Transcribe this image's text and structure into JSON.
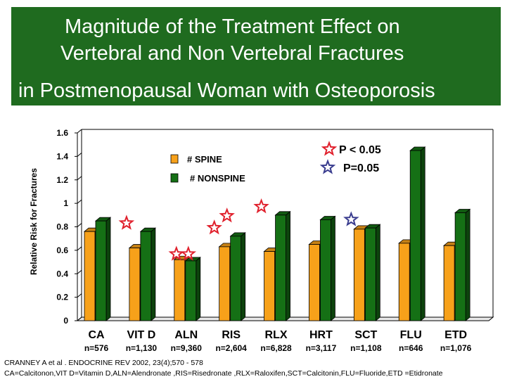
{
  "title": {
    "line1": "Magnitude of the Treatment Effect on",
    "line2": "Vertebral and Non Vertebral Fractures",
    "line3": "in Postmenopausal Woman with Osteoporosis"
  },
  "colors": {
    "title_bg": "#1f6b1f",
    "spine": "#f7a11a",
    "nonspine": "#157015",
    "star_red": "#e0202c",
    "star_blue": "#3a3d8f"
  },
  "chart_data": {
    "type": "bar",
    "ylabel": "Relative Risk  for Fractures",
    "xlabel": "",
    "ylim": [
      0,
      1.6
    ],
    "yticks": [
      "0",
      "0.2",
      "0.4",
      "0.6",
      "0.8",
      "1",
      "1.2",
      "1.4",
      "1.6"
    ],
    "categories": [
      "CA",
      "VIT D",
      "ALN",
      "RIS",
      "RLX",
      "HRT",
      "SCT",
      "FLU",
      "ETD"
    ],
    "sample_sizes": [
      "n=576",
      "n=1,130",
      "n=9,360",
      "n=2,604",
      "n=6,828",
      "n=3,117",
      "n=1,108",
      "n=646",
      "n=1,076"
    ],
    "series": [
      {
        "name": "# SPINE",
        "values": [
          0.76,
          0.62,
          0.52,
          0.63,
          0.59,
          0.65,
          0.78,
          0.66,
          0.64
        ]
      },
      {
        "name": "# NONSPINE",
        "values": [
          0.85,
          0.76,
          0.51,
          0.72,
          0.9,
          0.86,
          0.79,
          1.45,
          0.92
        ]
      }
    ],
    "legend": {
      "placement": "top-center"
    },
    "grid": false,
    "significance_legend": [
      {
        "symbol": "red-star",
        "label": "P < 0.05"
      },
      {
        "symbol": "blue-star",
        "label": "P=0.05"
      }
    ],
    "significance_markers": [
      {
        "category": "VIT D",
        "symbol": "red-star",
        "count": 1
      },
      {
        "category": "ALN",
        "symbol": "red-star",
        "count": 2
      },
      {
        "category": "RIS",
        "symbol": "red-star",
        "count": 2
      },
      {
        "category": "RLX",
        "symbol": "red-star",
        "count": 1
      },
      {
        "category": "SCT",
        "symbol": "blue-star",
        "count": 1
      }
    ]
  },
  "footer": {
    "citation": "CRANNEY A et al . ENDOCRINE REV 2002, 23(4);570 - 578",
    "abbreviations": "CA=Calcitonon,VIT D=Vitamin D,ALN=Alendronate ,RIS=Risedronate ,RLX=Raloxifen,SCT=Calcitonin,FLU=Fluoride,ETD =Etidronate"
  }
}
